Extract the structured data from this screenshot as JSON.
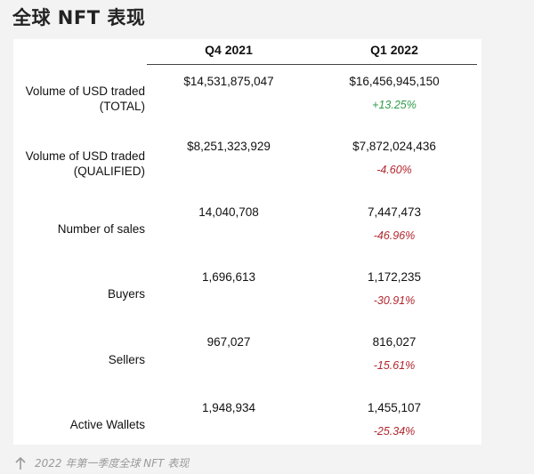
{
  "page": {
    "title": "全球 NFT 表现"
  },
  "table": {
    "columns": [
      "Q4 2021",
      "Q1 2022"
    ],
    "rows": [
      {
        "label_line1": "Volume of USD traded",
        "label_line2": "(TOTAL)",
        "q4": "$14,531,875,047",
        "q1": "$16,456,945,150",
        "change": "+13.25%"
      },
      {
        "label_line1": "Volume of USD traded",
        "label_line2": "(QUALIFIED)",
        "q4": "$8,251,323,929",
        "q1": "$7,872,024,436",
        "change": "-4.60%"
      },
      {
        "label_line1": "Number of sales",
        "label_line2": "",
        "q4": "14,040,708",
        "q1": "7,447,473",
        "change": "-46.96%"
      },
      {
        "label_line1": "Buyers",
        "label_line2": "",
        "q4": "1,696,613",
        "q1": "1,172,235",
        "change": "-30.91%"
      },
      {
        "label_line1": "Sellers",
        "label_line2": "",
        "q4": "967,027",
        "q1": "816,027",
        "change": "-15.61%"
      },
      {
        "label_line1": "Active Wallets",
        "label_line2": "",
        "q4": "1,948,934",
        "q1": "1,455,107",
        "change": "-25.34%"
      }
    ]
  },
  "caption": {
    "icon": "arrow-up-icon",
    "text": "2022 年第一季度全球 NFT 表现"
  },
  "colors": {
    "positive": "#2e9b4a",
    "negative": "#b2262e"
  }
}
